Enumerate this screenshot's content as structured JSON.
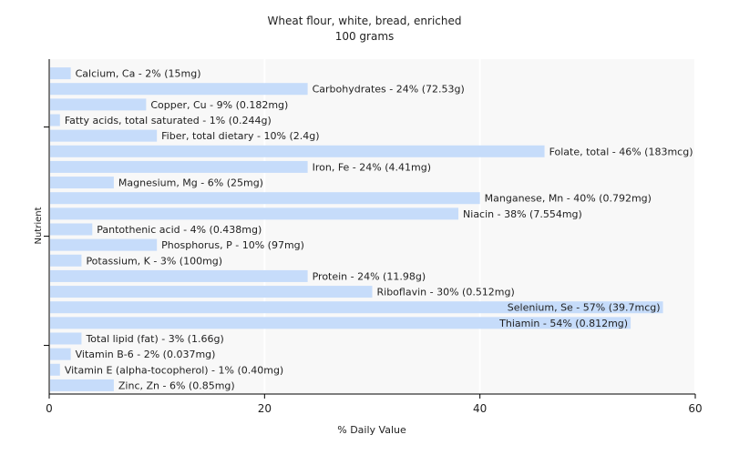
{
  "chart_data": {
    "type": "bar",
    "orientation": "horizontal",
    "title": "Wheat flour, white, bread, enriched",
    "subtitle": "100 grams",
    "xlabel": "% Daily Value",
    "ylabel": "Nutrient",
    "xlim": [
      0,
      60
    ],
    "xticks": [
      0,
      20,
      40,
      60
    ],
    "grid": true,
    "bar_color": "#c6dcfa",
    "categories": [
      "Calcium, Ca",
      "Carbohydrates",
      "Copper, Cu",
      "Fatty acids, total saturated",
      "Fiber, total dietary",
      "Folate, total",
      "Iron, Fe",
      "Magnesium, Mg",
      "Manganese, Mn",
      "Niacin",
      "Pantothenic acid",
      "Phosphorus, P",
      "Potassium, K",
      "Protein",
      "Riboflavin",
      "Selenium, Se",
      "Thiamin",
      "Total lipid (fat)",
      "Vitamin B-6",
      "Vitamin E (alpha-tocopherol)",
      "Zinc, Zn"
    ],
    "values": [
      2,
      24,
      9,
      1,
      10,
      46,
      24,
      6,
      40,
      38,
      4,
      10,
      3,
      24,
      30,
      57,
      54,
      3,
      2,
      1,
      6
    ],
    "labels": [
      "Calcium, Ca - 2% (15mg)",
      "Carbohydrates - 24% (72.53g)",
      "Copper, Cu - 9% (0.182mg)",
      "Fatty acids, total saturated - 1% (0.244g)",
      "Fiber, total dietary - 10% (2.4g)",
      "Folate, total - 46% (183mcg)",
      "Iron, Fe - 24% (4.41mg)",
      "Magnesium, Mg - 6% (25mg)",
      "Manganese, Mn - 40% (0.792mg)",
      "Niacin - 38% (7.554mg)",
      "Pantothenic acid - 4% (0.438mg)",
      "Phosphorus, P - 10% (97mg)",
      "Potassium, K - 3% (100mg)",
      "Protein - 24% (11.98g)",
      "Riboflavin - 30% (0.512mg)",
      "Selenium, Se - 57% (39.7mcg)",
      "Thiamin - 54% (0.812mg)",
      "Total lipid (fat) - 3% (1.66g)",
      "Vitamin B-6 - 2% (0.037mg)",
      "Vitamin E (alpha-tocopherol) - 1% (0.40mg)",
      "Zinc, Zn - 6% (0.85mg)"
    ]
  }
}
